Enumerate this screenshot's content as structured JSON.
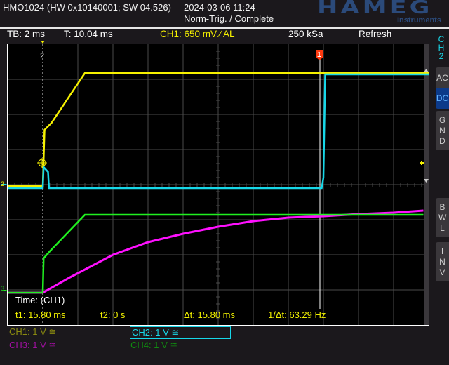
{
  "header": {
    "device": "HMO1024 (HW 0x10140001; SW 04.526)",
    "datetime": "2024-03-06 11:24",
    "status": "Norm-Trig. / Complete",
    "logo": "HAMEG",
    "logo_sub": "Instruments"
  },
  "info_bar": {
    "timebase": "TB: 2 ms",
    "trigger_time": "T: 10.04 ms",
    "trigger": "CH1: 650 mV ∕ AL",
    "sample_rate": "250 kSa",
    "mode": "Refresh"
  },
  "side_panel": {
    "channel": "CH2",
    "buttons": [
      {
        "label": "AC",
        "selected": false
      },
      {
        "label": "DC",
        "selected": true
      },
      {
        "label": "GND",
        "selected": false
      },
      {
        "label": "BWL",
        "selected": false
      },
      {
        "label": "INV",
        "selected": false
      }
    ]
  },
  "markers": {
    "ch_marker_top": "2",
    "cursor1": "1",
    "ref_12": "2",
    "ref_34": "3"
  },
  "cursor_measure": {
    "title": "Time: (CH1)",
    "t1": "t1: 15.80 ms",
    "t2": "t2: 0 s",
    "dt": "Δt: 15.80 ms",
    "inv_dt": "1/Δt: 63.29 Hz"
  },
  "channels": [
    {
      "label": "CH1: 1 V ≅",
      "color": "#8a8a10",
      "active": false
    },
    {
      "label": "CH2: 1 V ≅",
      "color": "#17d7e8",
      "active": true
    },
    {
      "label": "CH3: 1 V ≅",
      "color": "#a010a0",
      "active": false
    },
    {
      "label": "CH4: 1 V ≅",
      "color": "#108a10",
      "active": false
    }
  ],
  "chart_data": {
    "type": "line",
    "xlabel": "",
    "ylabel": "",
    "x_unit": "ms",
    "xlim": [
      -2,
      22
    ],
    "time_per_div_ms": 2,
    "volts_per_div": 1,
    "grid": true,
    "cursor_t1_ms": 15.8,
    "series": [
      {
        "channel": "CH1",
        "color": "#f5f000",
        "ground_div": 0,
        "x": [
          -2,
          0,
          0.1,
          0.5,
          2.4,
          22
        ],
        "y": [
          -0.04,
          -0.04,
          1.56,
          1.76,
          3.18,
          3.18
        ]
      },
      {
        "channel": "CH2",
        "color": "#17d7e8",
        "ground_div": 0,
        "x": [
          -2,
          0,
          0.05,
          0.3,
          0.35,
          15.9,
          16.0,
          16.1,
          22
        ],
        "y": [
          -0.1,
          -0.1,
          0.5,
          0.36,
          -0.1,
          -0.1,
          0.2,
          3.14,
          3.14
        ]
      },
      {
        "channel": "CH3",
        "color": "#ff10ff",
        "ground_div": -3,
        "x": [
          -2,
          0,
          1.56,
          4,
          6,
          8,
          10,
          12,
          14,
          16,
          18,
          20,
          21.7
        ],
        "y": [
          -0.08,
          -0.08,
          0.36,
          1.0,
          1.36,
          1.6,
          1.8,
          1.96,
          2.06,
          2.1,
          2.16,
          2.2,
          2.26
        ]
      },
      {
        "channel": "CH4",
        "color": "#20f020",
        "ground_div": -3,
        "x": [
          -2,
          0,
          0.05,
          0.4,
          2.4,
          21.7
        ],
        "y": [
          -0.08,
          -0.08,
          0.9,
          1.1,
          2.14,
          2.14
        ]
      }
    ]
  }
}
